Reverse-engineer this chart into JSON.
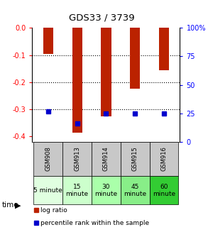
{
  "title": "GDS33 / 3739",
  "samples": [
    "GSM908",
    "GSM913",
    "GSM914",
    "GSM915",
    "GSM916"
  ],
  "log_ratios": [
    -0.095,
    -0.385,
    -0.325,
    -0.225,
    -0.155
  ],
  "percentile_ranks": [
    27.0,
    16.0,
    25.0,
    25.0,
    25.0
  ],
  "bar_color": "#bb2200",
  "dot_color": "#0000cc",
  "ylim_left": [
    -0.42,
    0.0
  ],
  "ylim_right": [
    0,
    100
  ],
  "yticks_left": [
    0.0,
    -0.1,
    -0.2,
    -0.3,
    -0.4
  ],
  "yticks_right": [
    0,
    25,
    50,
    75,
    100
  ],
  "time_labels": [
    "5 minute",
    "15\nminute",
    "30\nminute",
    "45\nminute",
    "60\nminute"
  ],
  "time_colors": [
    "#e0ffe0",
    "#ccffcc",
    "#aaffaa",
    "#88ee88",
    "#33cc33"
  ],
  "gsm_bg": "#c8c8c8",
  "legend_log_ratio": "log ratio",
  "legend_percentile": "percentile rank within the sample",
  "bar_width": 0.35,
  "gridline_values": [
    -0.1,
    -0.2,
    -0.3
  ]
}
